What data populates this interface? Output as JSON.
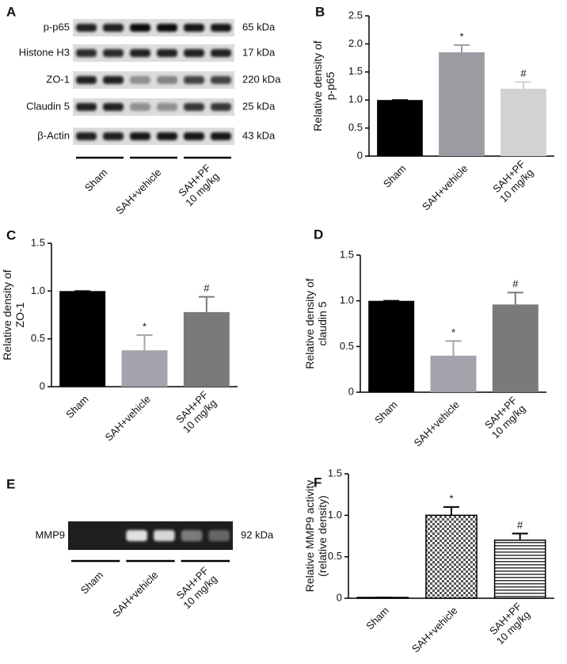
{
  "blots": [
    {
      "panel": "A",
      "rows": [
        {
          "name": "p-p65",
          "size": "65 kDa"
        },
        {
          "name": "Histone H3",
          "size": "17 kDa"
        },
        {
          "name": "ZO-1",
          "size": "220 kDa"
        },
        {
          "name": "Claudin 5",
          "size": "25 kDa"
        },
        {
          "name": "β-Actin",
          "size": "43 kDa"
        }
      ],
      "groups": [
        "Sham",
        "SAH+vehicle",
        "SAH+PF\n10 mg/kg"
      ]
    },
    {
      "panel": "E",
      "rows": [
        {
          "name": "MMP9",
          "size": "92 kDa"
        }
      ],
      "groups": [
        "Sham",
        "SAH+vehicle",
        "SAH+PF\n10 mg/kg"
      ]
    }
  ],
  "chart_data": [
    {
      "panel": "B",
      "type": "bar",
      "ylabel": "Relative density of\np-p65",
      "categories": [
        "Sham",
        "SAH+vehicle",
        "SAH+PF\n10 mg/kg"
      ],
      "values": [
        1.0,
        1.85,
        1.2
      ],
      "errors": [
        0,
        0.13,
        0.12
      ],
      "colors": [
        "#000000",
        "#9b9ba1",
        "#d2d2d2"
      ],
      "markers": [
        {
          "category": "SAH+vehicle",
          "text": "*"
        },
        {
          "category": "SAH+PF\n10 mg/kg",
          "text": "#"
        }
      ],
      "ylim": [
        0,
        2.5
      ],
      "yticks": [
        0,
        0.5,
        {
          "value": 1,
          "label": "1.0"
        },
        1.5,
        {
          "value": 2,
          "label": "2.0"
        },
        2.5
      ]
    },
    {
      "panel": "C",
      "type": "bar",
      "ylabel": "Relative density of\nZO-1",
      "categories": [
        "Sham",
        "SAH+vehicle",
        "SAH+PF\n10 mg/kg"
      ],
      "values": [
        1.0,
        0.38,
        0.78
      ],
      "errors": [
        0,
        0.16,
        0.16
      ],
      "colors": [
        "#000000",
        "#a3a3ab",
        "#7a7a7a"
      ],
      "markers": [
        {
          "category": "SAH+vehicle",
          "text": "*"
        },
        {
          "category": "SAH+PF\n10 mg/kg",
          "text": "#"
        }
      ],
      "ylim": [
        0,
        1.5
      ],
      "yticks": [
        0,
        0.5,
        {
          "value": 1,
          "label": "1.0"
        },
        1.5
      ]
    },
    {
      "panel": "D",
      "type": "bar",
      "ylabel": "Relative density of\nclaudin 5",
      "categories": [
        "Sham",
        "SAH+vehicle",
        "SAH+PF\n10 mg/kg"
      ],
      "values": [
        1.0,
        0.4,
        0.96
      ],
      "errors": [
        0,
        0.16,
        0.13
      ],
      "colors": [
        "#000000",
        "#a3a3ab",
        "#7a7a7a"
      ],
      "markers": [
        {
          "category": "SAH+vehicle",
          "text": "*"
        },
        {
          "category": "SAH+PF\n10 mg/kg",
          "text": "#"
        }
      ],
      "ylim": [
        0,
        1.5
      ],
      "yticks": [
        0,
        0.5,
        {
          "value": 1,
          "label": "1.0"
        },
        1.5
      ]
    },
    {
      "panel": "F",
      "type": "bar",
      "ylabel": "Relative MMP9 activity\n(relative density)",
      "categories": [
        "Sham",
        "SAH+vehicle",
        "SAH+PF\n10 mg/kg"
      ],
      "values": [
        0.01,
        1.0,
        0.7
      ],
      "errors": [
        0,
        0.1,
        0.08
      ],
      "colors": [
        "#000000",
        "#000000",
        "#000000"
      ],
      "patterns": [
        "solid",
        "checker",
        "hlines"
      ],
      "markers": [
        {
          "category": "SAH+vehicle",
          "text": "*"
        },
        {
          "category": "SAH+PF\n10 mg/kg",
          "text": "#"
        }
      ],
      "ylim": [
        0,
        1.5
      ],
      "yticks": [
        0,
        0.5,
        {
          "value": 1,
          "label": "1.0"
        },
        1.5
      ]
    }
  ]
}
